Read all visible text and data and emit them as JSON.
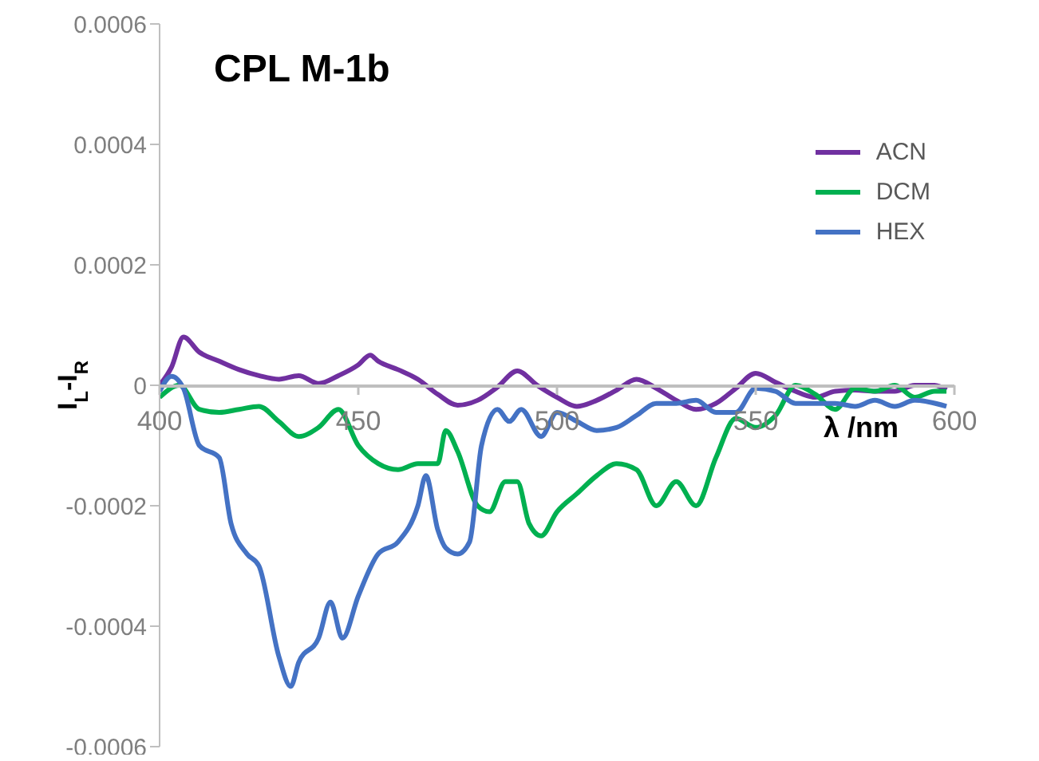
{
  "chart_data": {
    "type": "line",
    "title": "CPL M-1b",
    "xlabel": "λ /nm",
    "ylabel": "I$_{L}$-I$_{R}$",
    "xlim": [
      400,
      600
    ],
    "xticks": [
      400,
      450,
      500,
      550,
      600
    ],
    "ylim": [
      -0.0006,
      0.0006
    ],
    "yticks": [
      -0.0006,
      -0.0004,
      -0.0002,
      0,
      0.0002,
      0.0004,
      0.0006
    ],
    "grid": false,
    "legend": "top right",
    "marker": "none",
    "line_style": "solid",
    "series": [
      {
        "name": "ACN",
        "color": "#7030a0",
        "x": [
          400,
          403,
          406,
          410,
          415,
          420,
          425,
          430,
          435,
          440,
          445,
          450,
          453,
          455,
          460,
          465,
          470,
          475,
          480,
          485,
          490,
          495,
          500,
          505,
          510,
          515,
          520,
          525,
          530,
          535,
          540,
          545,
          550,
          555,
          560,
          565,
          570,
          575,
          580,
          585,
          590,
          595,
          598
        ],
        "values": [
          0,
          3e-05,
          8e-05,
          5.5e-05,
          4e-05,
          2.6e-05,
          1.6e-05,
          1e-05,
          1.6e-05,
          3e-06,
          1.6e-05,
          3.4e-05,
          5e-05,
          4e-05,
          2.6e-05,
          1e-05,
          -1.5e-05,
          -3.3e-05,
          -2.5e-05,
          -3e-06,
          2.4e-05,
          0,
          -2e-05,
          -3.5e-05,
          -2.5e-05,
          -8e-06,
          1e-05,
          -5e-06,
          -2.5e-05,
          -4e-05,
          -3e-05,
          -5e-06,
          2e-05,
          5e-06,
          -1e-05,
          -2e-05,
          -1e-05,
          -8e-06,
          -1e-05,
          -1e-05,
          0,
          0,
          -8e-06
        ]
      },
      {
        "name": "DCM",
        "color": "#00b050",
        "x": [
          400,
          405,
          410,
          415,
          420,
          425,
          430,
          435,
          440,
          445,
          450,
          455,
          460,
          465,
          470,
          472,
          475,
          480,
          483,
          487,
          490,
          493,
          496,
          500,
          505,
          510,
          515,
          520,
          525,
          530,
          535,
          540,
          545,
          550,
          555,
          560,
          565,
          570,
          575,
          580,
          585,
          590,
          595,
          598
        ],
        "values": [
          -2e-05,
          0,
          -4e-05,
          -4.5e-05,
          -4e-05,
          -3.5e-05,
          -6e-05,
          -8.5e-05,
          -7e-05,
          -4e-05,
          -0.0001,
          -0.00013,
          -0.00014,
          -0.00013,
          -0.00013,
          -7.5e-05,
          -0.00011,
          -0.0002,
          -0.00021,
          -0.00016,
          -0.00016,
          -0.00023,
          -0.00025,
          -0.00021,
          -0.00018,
          -0.00015,
          -0.00013,
          -0.00014,
          -0.0002,
          -0.00016,
          -0.0002,
          -0.00012,
          -5.5e-05,
          -7e-05,
          -5e-05,
          0,
          -1.5e-05,
          -4e-05,
          -5e-06,
          -1e-05,
          0,
          -2e-05,
          -1e-05,
          -1e-05
        ]
      },
      {
        "name": "HEX",
        "color": "#4472c4",
        "x": [
          400,
          403,
          406,
          410,
          415,
          418,
          422,
          425,
          430,
          433,
          435,
          440,
          443,
          446,
          450,
          455,
          460,
          465,
          467,
          470,
          472,
          475,
          478,
          481,
          485,
          488,
          491,
          496,
          500,
          505,
          510,
          515,
          520,
          525,
          530,
          535,
          540,
          545,
          550,
          555,
          560,
          565,
          570,
          575,
          580,
          585,
          590,
          598
        ],
        "values": [
          -1e-05,
          1.5e-05,
          -5e-06,
          -0.0001,
          -0.00012,
          -0.00023,
          -0.00028,
          -0.0003,
          -0.00045,
          -0.0005,
          -0.00046,
          -0.00042,
          -0.00036,
          -0.00042,
          -0.00035,
          -0.00028,
          -0.00026,
          -0.0002,
          -0.00015,
          -0.00024,
          -0.00027,
          -0.00028,
          -0.00026,
          -0.0001,
          -4e-05,
          -6e-05,
          -4e-05,
          -8.5e-05,
          -4.5e-05,
          -6e-05,
          -7.5e-05,
          -7e-05,
          -5e-05,
          -3e-05,
          -3e-05,
          -2.5e-05,
          -4.5e-05,
          -4.5e-05,
          -5e-06,
          -1e-05,
          -3e-05,
          -3e-05,
          -3e-05,
          -3.5e-05,
          -2.5e-05,
          -3.5e-05,
          -2.5e-05,
          -3.5e-05
        ]
      }
    ]
  }
}
